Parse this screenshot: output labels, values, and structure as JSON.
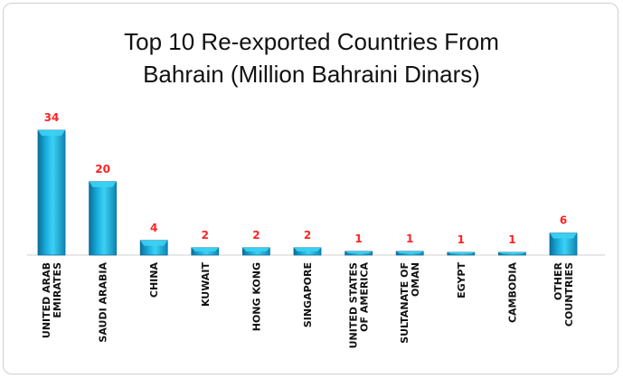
{
  "chart_data": {
    "type": "bar",
    "title_line1": "Top 10 Re-exported Countries From",
    "title_line2": "Bahrain (Million Bahraini Dinars)",
    "categories": [
      [
        "UNITED ARAB",
        "EMIRATES"
      ],
      [
        "SAUDI ARABIA"
      ],
      [
        "CHINA"
      ],
      [
        "KUWAIT"
      ],
      [
        "HONG KONG"
      ],
      [
        "SINGAPORE"
      ],
      [
        "UNITED STATES",
        "OF AMERICA"
      ],
      [
        "SULTANATE OF",
        "OMAN"
      ],
      [
        "EGYPT"
      ],
      [
        "CAMBODIA"
      ],
      [
        "OTHER",
        "COUNTRIES"
      ]
    ],
    "values": [
      34,
      20,
      4,
      2,
      2,
      2,
      1,
      1,
      0.5,
      0.5,
      6
    ],
    "data_labels": [
      "34",
      "20",
      "4",
      "2",
      "2",
      "2",
      "1",
      "1",
      "1",
      "1",
      "6"
    ],
    "ylim": [
      0,
      34
    ],
    "grid": false,
    "legend": "none",
    "colors": {
      "bar_top": "#3cd1f3",
      "bar_mid": "#1aaee0",
      "bar_dark": "#0a6f97",
      "label": "#ff2222"
    }
  }
}
